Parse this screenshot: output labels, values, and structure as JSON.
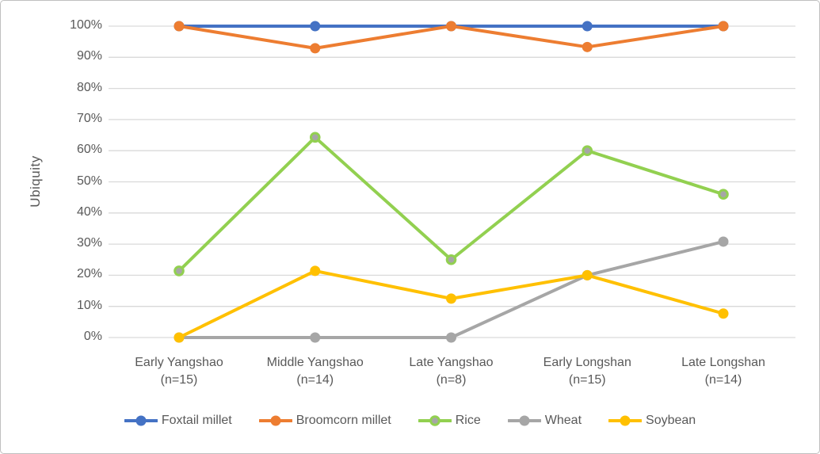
{
  "chart": {
    "y_axis_title": "Ubiquity",
    "frame_border_color": "#bfbfbf",
    "gridline_color": "#d9d9d9",
    "text_color": "#595959"
  },
  "chart_data": {
    "type": "line",
    "title": "",
    "xlabel": "",
    "ylabel": "Ubiquity",
    "ylim": [
      0,
      100
    ],
    "y_tick_step": 10,
    "y_tick_labels": [
      "0%",
      "10%",
      "20%",
      "30%",
      "40%",
      "50%",
      "60%",
      "70%",
      "80%",
      "90%",
      "100%"
    ],
    "grid": "horizontal",
    "legend_position": "bottom",
    "categories": [
      "Early Yangshao",
      "Middle Yangshao",
      "Late Yangshao",
      "Early Longshan",
      "Late Longshan"
    ],
    "category_sublabels": [
      "(n=15)",
      "(n=14)",
      "(n=8)",
      "(n=15)",
      "(n=14)"
    ],
    "series": [
      {
        "name": "Foxtail millet",
        "color": "#4472c4",
        "marker_fill": "#4472c4",
        "marker_stroke": "#4472c4",
        "values": [
          100,
          100,
          100,
          100,
          100
        ]
      },
      {
        "name": "Broomcorn millet",
        "color": "#ed7d31",
        "marker_fill": "#ed7d31",
        "marker_stroke": "#ed7d31",
        "values": [
          100,
          92.9,
          100,
          93.3,
          100
        ]
      },
      {
        "name": "Rice",
        "color": "#92d050",
        "marker_fill": "#a6a6a6",
        "marker_stroke": "#92d050",
        "values": [
          21.4,
          64.3,
          25,
          60,
          46
        ]
      },
      {
        "name": "Wheat",
        "color": "#a6a6a6",
        "marker_fill": "#a6a6a6",
        "marker_stroke": "#a6a6a6",
        "values": [
          0,
          0,
          0,
          20,
          30.8
        ]
      },
      {
        "name": "Soybean",
        "color": "#ffc000",
        "marker_fill": "#ffc000",
        "marker_stroke": "#ffc000",
        "values": [
          0,
          21.4,
          12.5,
          20,
          7.7
        ]
      }
    ]
  }
}
